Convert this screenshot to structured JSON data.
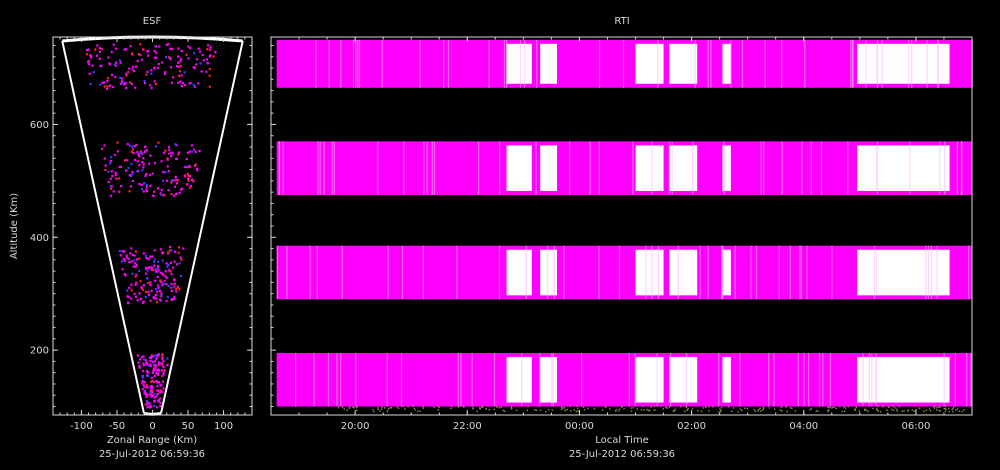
{
  "colors": {
    "background": "#000000",
    "axis": "#d8d8d8",
    "magenta": "#ff00ff",
    "white": "#ffffff",
    "red": "#ff2020",
    "blue": "#3040ff",
    "noise": "#7a8a3a"
  },
  "chart_data": [
    {
      "type": "heatmap",
      "title": "ESF",
      "xlabel": "Zonal Range (Km)",
      "ylabel": "Altitude (Km)",
      "timestamp": "25-Jul-2012 06:59:36",
      "xlim": [
        -140,
        140
      ],
      "ylim": [
        85,
        755
      ],
      "xticks": [
        -100,
        -50,
        0,
        50,
        100
      ],
      "xtick_labels": [
        "-100",
        "-50",
        "0",
        "50",
        "100"
      ],
      "yticks": [
        200,
        400,
        600
      ],
      "ytick_labels": [
        "200",
        "400",
        "600"
      ],
      "fan": {
        "bottom_alt": 88,
        "top_alt": 748,
        "bottom_half_width": 12,
        "top_half_width": 127
      },
      "echo_bands": [
        {
          "alt_min": 100,
          "alt_max": 195
        },
        {
          "alt_min": 285,
          "alt_max": 385
        },
        {
          "alt_min": 475,
          "alt_max": 570
        },
        {
          "alt_min": 665,
          "alt_max": 745
        }
      ]
    },
    {
      "type": "heatmap",
      "title": "RTI",
      "xlabel": "Local Time",
      "timestamp": "25-Jul-2012 06:59:36",
      "xlim": [
        18.5,
        7.0
      ],
      "xticks": [
        20,
        22,
        24,
        26,
        28,
        30
      ],
      "xtick_labels": [
        "20:00",
        "22:00",
        "00:00",
        "02:00",
        "04:00",
        "06:00"
      ],
      "ylim": [
        85,
        755
      ],
      "echo_bands": [
        {
          "alt_min": 100,
          "alt_max": 195
        },
        {
          "alt_min": 290,
          "alt_max": 385
        },
        {
          "alt_min": 475,
          "alt_max": 570
        },
        {
          "alt_min": 665,
          "alt_max": 750
        }
      ],
      "white_intervals": [
        [
          22.7,
          23.15
        ],
        [
          23.3,
          23.6
        ],
        [
          25.0,
          25.5
        ],
        [
          25.6,
          26.1
        ],
        [
          26.55,
          26.7
        ],
        [
          28.95,
          29.3
        ],
        [
          29.3,
          30.6
        ]
      ]
    }
  ]
}
